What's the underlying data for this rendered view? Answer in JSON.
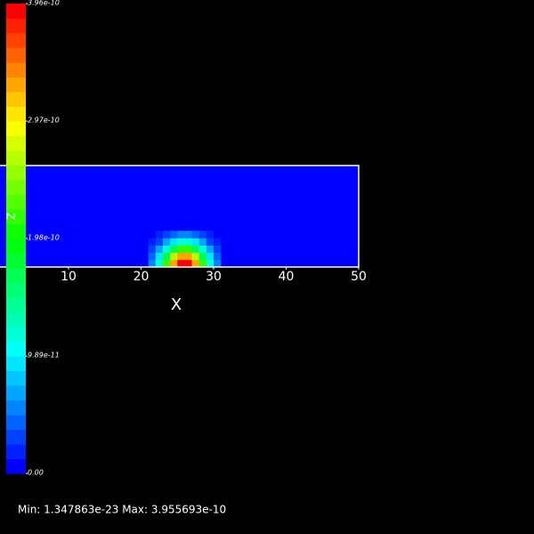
{
  "chart_data": {
    "type": "heatmap",
    "x_label": "X",
    "z_label": "Z",
    "xlim": [
      0,
      50
    ],
    "xticks": [
      10,
      20,
      30,
      40,
      50
    ],
    "zlim": [
      0,
      14
    ],
    "x": [
      21,
      22,
      23,
      24,
      25,
      26,
      27,
      28,
      29,
      30
    ],
    "z": [
      0,
      1,
      2,
      3,
      4
    ],
    "values": [
      [
        5e-11,
        1.15e-10,
        2.13e-10,
        3.22e-10,
        3.96e-10,
        3.96e-10,
        3.22e-10,
        2.13e-10,
        1.15e-10,
        5e-11
      ],
      [
        4.1e-11,
        9.3e-11,
        1.73e-10,
        2.62e-10,
        3.22e-10,
        3.22e-10,
        2.62e-10,
        1.73e-10,
        9.3e-11,
        4.1e-11
      ],
      [
        2.7e-11,
        6.2e-11,
        1.15e-10,
        1.73e-10,
        2.13e-10,
        2.13e-10,
        1.73e-10,
        1.15e-10,
        6.2e-11,
        2.7e-11
      ],
      [
        1.5e-11,
        3.3e-11,
        6.2e-11,
        9.3e-11,
        1.15e-10,
        1.15e-10,
        9.3e-11,
        6.2e-11,
        3.3e-11,
        1.5e-11
      ],
      [
        6e-12,
        1.5e-11,
        2.7e-11,
        4.1e-11,
        5e-11,
        5e-11,
        4.1e-11,
        2.7e-11,
        1.5e-11,
        6e-12
      ]
    ],
    "clim": [
      0,
      3.96e-10
    ],
    "cticks": [
      {
        "value": 0,
        "label": "0.00"
      },
      9.89e-11,
      1.98e-10,
      2.97e-10,
      3.96e-10
    ],
    "color_levels": 32,
    "range_label": "Min: 1.347863e-23 Max: 3.955693e-10"
  }
}
